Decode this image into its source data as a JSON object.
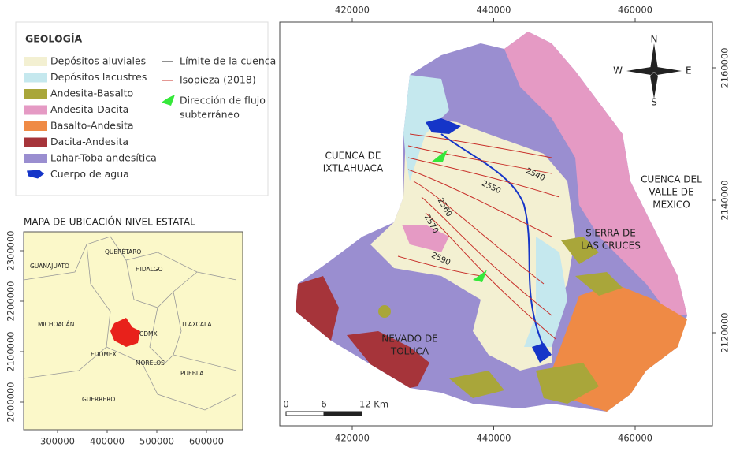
{
  "legend": {
    "title": "GEOLOGÍA",
    "units": [
      "Depósitos aluviales",
      "Depósitos lacustres",
      "Andesita-Basalto",
      "Andesita-Dacita",
      "Basalto-Andesita",
      "Dacita-Andesita",
      "Lahar-Toba andesítica",
      "Cuerpo de agua"
    ],
    "lines": [
      "Límite de la cuenca",
      "Isopieza (2018)"
    ],
    "flow": [
      "Dirección de flujo",
      "subterráneo"
    ]
  },
  "map": {
    "xticks": [
      420000,
      440000,
      460000
    ],
    "yticks": [
      2160000,
      2140000,
      2120000
    ],
    "places": {
      "ixtlahuaca": [
        "CUENCA DE",
        "IXTLAHUACA"
      ],
      "valle": [
        "CUENCA DEL",
        "VALLE DE",
        "MÉXICO"
      ],
      "sierra": [
        "SIERRA DE",
        "LAS CRUCES"
      ],
      "nevado": [
        "NEVADO DE",
        "TOLUCA"
      ]
    },
    "contours": [
      "2540",
      "2550",
      "2560",
      "2570",
      "2590"
    ],
    "scale": [
      "0",
      "6",
      "12 Km"
    ],
    "compass": [
      "N",
      "S",
      "E",
      "W"
    ]
  },
  "inset": {
    "title": "MAPA DE UBICACIÓN NIVEL ESTATAL",
    "states": [
      "QUERÉTARO",
      "GUANAJUATO",
      "HIDALGO",
      "MICHOACÁN",
      "TLAXCALA",
      "CDMX",
      "EDOMEX",
      "MORELOS",
      "PUEBLA",
      "GUERRERO"
    ],
    "xticks": [
      300000,
      400000,
      500000,
      600000
    ],
    "yticks": [
      2000000,
      2100000,
      2200000,
      2300000
    ]
  }
}
